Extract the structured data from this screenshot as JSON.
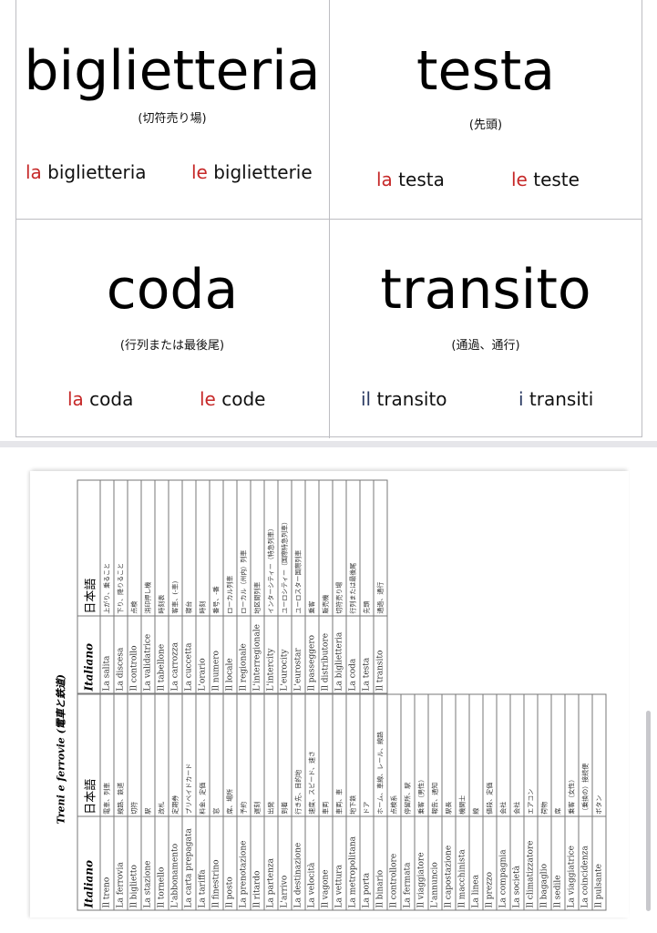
{
  "cards": [
    {
      "word": "biglietteria",
      "meaning": "(切符売り場)",
      "singular_article": "la",
      "singular": "biglietteria",
      "plural_article": "le",
      "plural": "biglietterie",
      "article_color": "#c62828"
    },
    {
      "word": "testa",
      "meaning": "(先頭)",
      "singular_article": "la",
      "singular": "testa",
      "plural_article": "le",
      "plural": "teste",
      "article_color": "#c62828"
    },
    {
      "word": "coda",
      "meaning": "(行列または最後尾)",
      "singular_article": "la",
      "singular": "coda",
      "plural_article": "le",
      "plural": "code",
      "article_color": "#c62828"
    },
    {
      "word": "transito",
      "meaning": "(通過、通行)",
      "singular_article": "il",
      "singular": "transito",
      "plural_article": "i",
      "plural": "transiti",
      "article_color": "#2b3b63"
    }
  ],
  "document": {
    "title": "Treni e ferrovie (電車と鉄道)",
    "headers": {
      "italian": "Italiano",
      "japanese": "日本語"
    },
    "left_rows": [
      [
        "Il treno",
        "電車、列車"
      ],
      [
        "La ferrovia",
        "線路、鉄道"
      ],
      [
        "Il biglietto",
        "切符"
      ],
      [
        "La stazione",
        "駅"
      ],
      [
        "Il tornello",
        "改札"
      ],
      [
        "L'abbonamento",
        "定期券"
      ],
      [
        "La carta prepagata",
        "プリペイドカード"
      ],
      [
        "La tariffa",
        "料金、定価"
      ],
      [
        "Il finestrino",
        "窓"
      ],
      [
        "Il posto",
        "席、場所"
      ],
      [
        "La prenotazione",
        "予約"
      ],
      [
        "Il ritardo",
        "遅刻"
      ],
      [
        "La partenza",
        "出発"
      ],
      [
        "L'arrivo",
        "到着"
      ],
      [
        "La destinazione",
        "行き先、目的地"
      ],
      [
        "La velocità",
        "速度、スピード、速さ"
      ],
      [
        "Il vagone",
        "車両"
      ],
      [
        "La vettura",
        "車両、車"
      ],
      [
        "La metropolitana",
        "地下鉄"
      ],
      [
        "La porta",
        "ドア"
      ],
      [
        "Il binario",
        "ホーム、車線、レール、線路"
      ],
      [
        "Il controllore",
        "点検系"
      ],
      [
        "La fermata",
        "停留所、駅"
      ],
      [
        "Il viaggiatore",
        "乗客（男性）"
      ],
      [
        "L'annuncio",
        "報告、通知"
      ],
      [
        "Il capostazione",
        "駅長"
      ],
      [
        "Il macchinista",
        "機関士"
      ],
      [
        "La linea",
        "線"
      ],
      [
        "Il prezzo",
        "値段、定価"
      ],
      [
        "La compagnia",
        "会社"
      ],
      [
        "La società",
        "会社"
      ],
      [
        "Il climatizzatore",
        "エアコン"
      ],
      [
        "Il bagaglio",
        "荷物"
      ],
      [
        "Il sedile",
        "席"
      ],
      [
        "La viaggiatrice",
        "乗客（女性）"
      ],
      [
        "La coincidenza",
        "（乗換の）接続便"
      ],
      [
        "Il pulsante",
        "ボタン"
      ]
    ],
    "right_rows": [
      [
        "La salita",
        "上がり、乗ること"
      ],
      [
        "La discesa",
        "下り、降りること"
      ],
      [
        "Il controllo",
        "点検"
      ],
      [
        "La validatrice",
        "消印押し機"
      ],
      [
        "Il tabellone",
        "時刻表"
      ],
      [
        "La carrozza",
        "客車、(-車)"
      ],
      [
        "La cuccetta",
        "寝台"
      ],
      [
        "L'orario",
        "時刻"
      ],
      [
        "Il numero",
        "番号、-番"
      ],
      [
        "Il locale",
        "ローカル列車"
      ],
      [
        "Il regionale",
        "ローカル（州内）列車"
      ],
      [
        "L'interregionale",
        "地区間列車"
      ],
      [
        "L'intercity",
        "インターシティー（特急列車）"
      ],
      [
        "L'eurocity",
        "ユーロシティー（国際特急列車）"
      ],
      [
        "L'eurostar",
        "ユーロスター国際列車"
      ],
      [
        "Il passeggero",
        "乗客"
      ],
      [
        "Il distributore",
        "販売機"
      ],
      [
        "La biglietteria",
        "切符売り場"
      ],
      [
        "La coda",
        "行列または最後尾"
      ],
      [
        "La testa",
        "先頭"
      ],
      [
        "Il transito",
        "通過、通行"
      ]
    ]
  }
}
